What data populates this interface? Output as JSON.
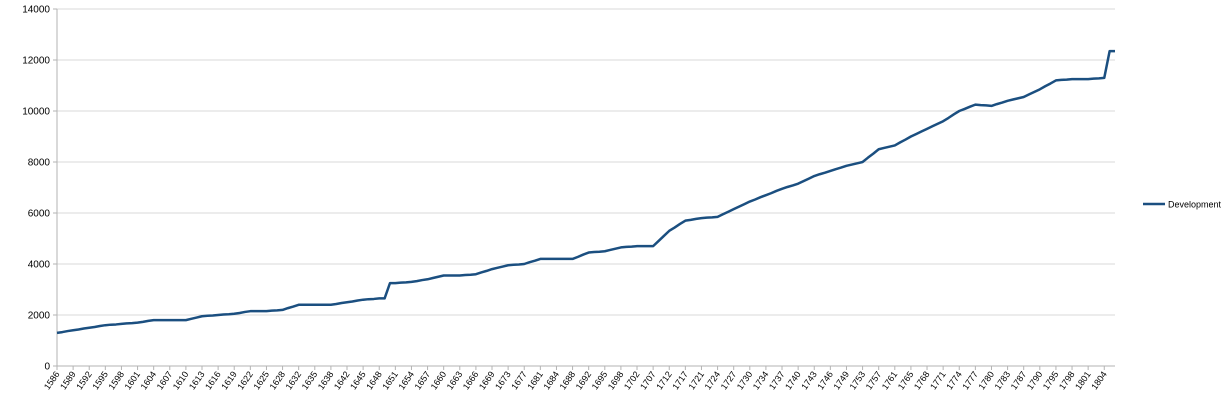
{
  "chart_data": {
    "type": "line",
    "categories": [
      "1586",
      null,
      null,
      "1589",
      null,
      null,
      "1592",
      null,
      null,
      "1595",
      null,
      null,
      "1598",
      null,
      null,
      "1601",
      null,
      null,
      "1604",
      null,
      null,
      "1607",
      null,
      null,
      "1610",
      null,
      null,
      "1613",
      null,
      null,
      "1616",
      null,
      null,
      "1619",
      null,
      null,
      "1622",
      null,
      null,
      "1625",
      null,
      null,
      "1628",
      null,
      null,
      "1632",
      null,
      null,
      "1635",
      null,
      null,
      "1638",
      null,
      null,
      "1642",
      null,
      null,
      "1645",
      null,
      null,
      "1648",
      null,
      null,
      "1651",
      null,
      null,
      "1654",
      null,
      null,
      "1657",
      null,
      null,
      "1660",
      null,
      null,
      "1663",
      null,
      null,
      "1666",
      null,
      null,
      "1669",
      null,
      null,
      "1673",
      null,
      null,
      "1677",
      null,
      null,
      "1681",
      null,
      null,
      "1684",
      null,
      null,
      "1688",
      null,
      null,
      "1692",
      null,
      null,
      "1695",
      null,
      null,
      "1698",
      null,
      null,
      "1702",
      null,
      null,
      "1707",
      null,
      null,
      "1712",
      null,
      null,
      "1717",
      null,
      null,
      "1721",
      null,
      null,
      "1724",
      null,
      null,
      "1727",
      null,
      null,
      "1730",
      null,
      null,
      "1734",
      null,
      null,
      "1737",
      null,
      null,
      "1740",
      null,
      null,
      "1743",
      null,
      null,
      "1746",
      null,
      null,
      "1749",
      null,
      null,
      "1753",
      null,
      null,
      "1757",
      null,
      null,
      "1761",
      null,
      null,
      "1765",
      null,
      null,
      "1768",
      null,
      null,
      "1771",
      null,
      null,
      "1774",
      null,
      null,
      "1777",
      null,
      null,
      "1780",
      null,
      null,
      "1783",
      null,
      null,
      "1787",
      null,
      null,
      "1790",
      null,
      null,
      "1795",
      null,
      null,
      "1798",
      null,
      null,
      "1801",
      null,
      null,
      "1804",
      null,
      null
    ],
    "series": [
      {
        "name": "Development",
        "color": "#1b4f80",
        "values": [
          1300,
          1330,
          1370,
          1400,
          1430,
          1470,
          1500,
          1530,
          1570,
          1600,
          1620,
          1630,
          1650,
          1670,
          1680,
          1700,
          1730,
          1770,
          1800,
          1800,
          1800,
          1800,
          1800,
          1800,
          1800,
          1850,
          1900,
          1950,
          1970,
          1980,
          2000,
          2020,
          2030,
          2050,
          2080,
          2120,
          2150,
          2150,
          2150,
          2150,
          2170,
          2180,
          2200,
          2270,
          2330,
          2400,
          2400,
          2400,
          2400,
          2400,
          2400,
          2400,
          2430,
          2470,
          2500,
          2530,
          2570,
          2600,
          2620,
          2630,
          2650,
          2650,
          3250,
          3250,
          3270,
          3280,
          3300,
          3330,
          3370,
          3400,
          3450,
          3500,
          3550,
          3550,
          3550,
          3550,
          3570,
          3580,
          3600,
          3670,
          3730,
          3800,
          3850,
          3900,
          3950,
          3970,
          3980,
          4000,
          4070,
          4130,
          4200,
          4200,
          4200,
          4200,
          4200,
          4200,
          4200,
          4280,
          4370,
          4450,
          4470,
          4480,
          4500,
          4550,
          4600,
          4650,
          4670,
          4680,
          4700,
          4700,
          4700,
          4700,
          4900,
          5100,
          5300,
          5430,
          5570,
          5700,
          5730,
          5770,
          5800,
          5820,
          5830,
          5850,
          5950,
          6050,
          6150,
          6250,
          6350,
          6450,
          6530,
          6620,
          6700,
          6780,
          6870,
          6950,
          7020,
          7080,
          7150,
          7250,
          7350,
          7450,
          7520,
          7580,
          7650,
          7720,
          7780,
          7850,
          7900,
          7950,
          8000,
          8170,
          8330,
          8500,
          8550,
          8600,
          8650,
          8770,
          8880,
          9000,
          9100,
          9200,
          9300,
          9400,
          9500,
          9600,
          9730,
          9870,
          10000,
          10080,
          10170,
          10250,
          10230,
          10220,
          10200,
          10270,
          10330,
          10400,
          10450,
          10500,
          10550,
          10650,
          10750,
          10850,
          10970,
          11080,
          11200,
          11220,
          11230,
          11250,
          11250,
          11250,
          11250,
          11270,
          11280,
          11300,
          12350,
          12350
        ]
      }
    ],
    "ylim": [
      0,
      14000
    ],
    "yticks": [
      0,
      2000,
      4000,
      6000,
      8000,
      10000,
      12000,
      14000
    ],
    "grid": true,
    "legend": "right"
  }
}
